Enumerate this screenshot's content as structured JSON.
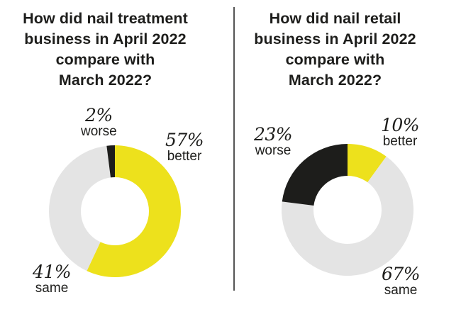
{
  "chart_data": [
    {
      "type": "pie",
      "title": "How did nail treatment\nbusiness in April 2022\ncompare with\nMarch 2022?",
      "slices": [
        {
          "label": "better",
          "value": 57,
          "display": "57%",
          "color": "#ede11c"
        },
        {
          "label": "same",
          "value": 41,
          "display": "41%",
          "color": "#e4e4e4"
        },
        {
          "label": "worse",
          "value": 2,
          "display": "2%",
          "color": "#1d1d1b"
        }
      ]
    },
    {
      "type": "pie",
      "title": "How did nail retail\nbusiness in April 2022\ncompare with\nMarch 2022?",
      "slices": [
        {
          "label": "better",
          "value": 10,
          "display": "10%",
          "color": "#ede11c"
        },
        {
          "label": "same",
          "value": 67,
          "display": "67%",
          "color": "#e4e4e4"
        },
        {
          "label": "worse",
          "value": 23,
          "display": "23%",
          "color": "#1d1d1b"
        }
      ]
    }
  ]
}
